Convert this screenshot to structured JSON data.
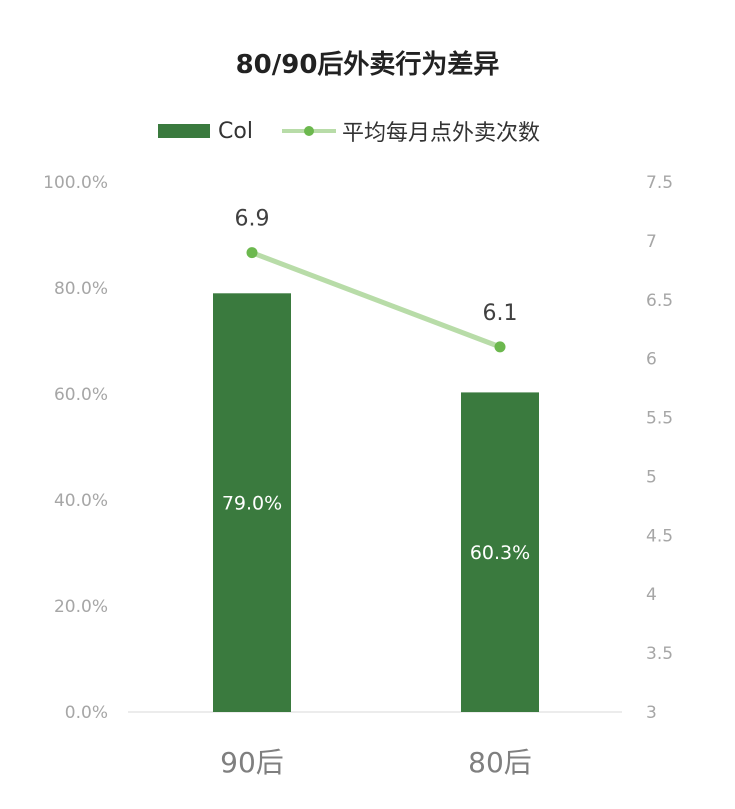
{
  "chart_data": {
    "type": "bar",
    "title": "80/90后外卖行为差异",
    "categories": [
      "90后",
      "80后"
    ],
    "series": [
      {
        "name": "Col",
        "type": "bar",
        "axis": "left",
        "values": [
          79.0,
          60.3
        ],
        "labels": [
          "79.0%",
          "60.3%"
        ],
        "color": "#3a7a3e"
      },
      {
        "name": "平均每月点外卖次数",
        "type": "line",
        "axis": "right",
        "values": [
          6.9,
          6.1
        ],
        "labels": [
          "6.9",
          "6.1"
        ],
        "color": "#b8dca8",
        "marker_color": "#6cb84e"
      }
    ],
    "y_left": {
      "range": [
        0,
        100
      ],
      "ticks": [
        "0.0%",
        "20.0%",
        "40.0%",
        "60.0%",
        "80.0%",
        "100.0%"
      ],
      "tick_values": [
        0,
        20,
        40,
        60,
        80,
        100
      ]
    },
    "y_right": {
      "range": [
        3,
        7.5
      ],
      "ticks": [
        "3",
        "3.5",
        "4",
        "4.5",
        "5",
        "5.5",
        "6",
        "6.5",
        "7",
        "7.5"
      ],
      "tick_values": [
        3,
        3.5,
        4,
        4.5,
        5,
        5.5,
        6,
        6.5,
        7,
        7.5
      ]
    },
    "grid": false,
    "legend_position": "top"
  }
}
